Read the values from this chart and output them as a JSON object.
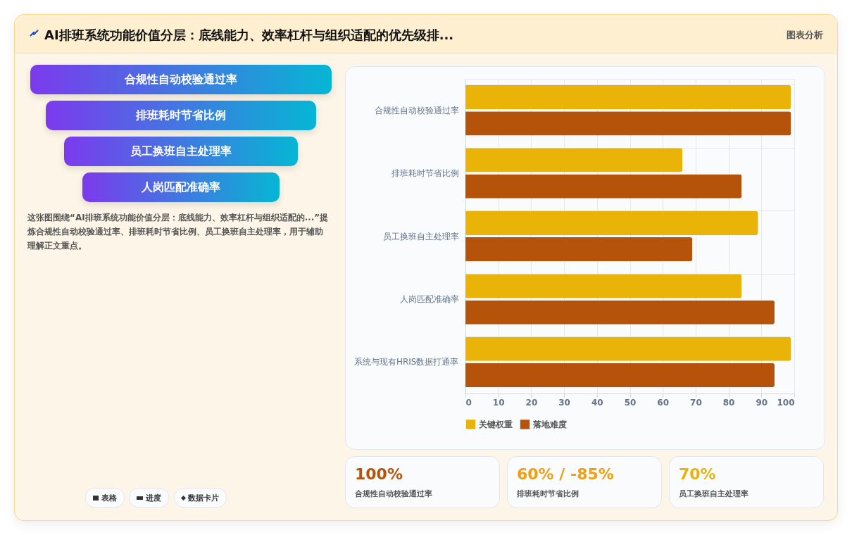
{
  "chart_data": {
    "type": "bar",
    "orientation": "horizontal",
    "title": "AI排班系统功能价值分层：底线能力、效率杠杆与组织适配的优先级排...",
    "categories": [
      "合规性自动校验通过率",
      "排班耗时节省比例",
      "员工换班自主处理率",
      "人岗匹配准确率",
      "系统与现有HRIS数据打通率"
    ],
    "series": [
      {
        "name": "关键权重",
        "color": "#eab308",
        "values": [
          99,
          66,
          89,
          84,
          99
        ]
      },
      {
        "name": "落地难度",
        "color": "#b45309",
        "values": [
          99,
          84,
          69,
          94,
          94
        ]
      }
    ],
    "xlim": [
      0,
      100
    ],
    "xticks": [
      0,
      10,
      20,
      30,
      40,
      50,
      60,
      70,
      80,
      90,
      100
    ],
    "grid": true,
    "legend": "bottom",
    "annotations": [
      "图表分析",
      "合规性自动校验通过率",
      "排班耗时节省比例",
      "员工换班自主处理率",
      "人岗匹配准确率",
      "这张图围绕“AI排班系统功能价值分层：底线能力、效率杠杆与组织适配的...”提炼合规性自动校验通过率、排班耗时节省比例、员工换班自主处理率，用于辅助理解正文重点。",
      "100%",
      "合规性自动校验通过率",
      "60% / -85%",
      "排班耗时节省比例",
      "70%",
      "员工换班自主处理率",
      "表格",
      "进度",
      "数据卡片"
    ]
  }
}
